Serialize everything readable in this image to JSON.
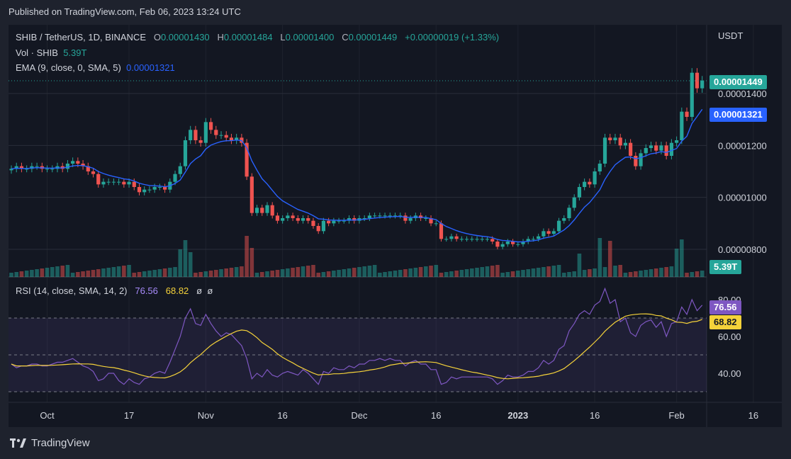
{
  "publish_line": "Published on TradingView.com, Feb 06, 2023 13:24 UTC",
  "footer_brand": "TradingView",
  "legend": {
    "symbol": "SHIB / TetherUS, 1D, BINANCE",
    "o_label": "O",
    "o": "0.00001430",
    "h_label": "H",
    "h": "0.00001484",
    "l_label": "L",
    "l": "0.00001400",
    "c_label": "C",
    "c": "0.00001449",
    "change": "+0.00000019 (+1.33%)",
    "vol_label": "Vol · SHIB",
    "vol": "5.39T",
    "ema_label": "EMA (9, close, 0, SMA, 5)",
    "ema": "0.00001321"
  },
  "rsi_legend": {
    "label": "RSI (14, close, SMA, 14, 2)",
    "rsi": "76.56",
    "ma": "68.82",
    "n1": "ø",
    "n2": "ø"
  },
  "price_axis": {
    "currency": "USDT",
    "ticks": [
      "0.00001400",
      "0.00001200",
      "0.00001000",
      "0.00000800"
    ],
    "tick_values": [
      1.4e-05,
      1.2e-05,
      1e-05,
      8e-06
    ]
  },
  "rsi_axis": {
    "ticks": [
      "80.00",
      "60.00",
      "40.00"
    ],
    "tick_values": [
      80,
      60,
      40
    ]
  },
  "tags": {
    "last": "0.00001449",
    "ema": "0.00001321",
    "vol": "5.39T",
    "rsi": "76.56",
    "rsi_ma": "68.82"
  },
  "time_axis": [
    "Oct",
    "17",
    "Nov",
    "16",
    "Dec",
    "16",
    "2023",
    "16",
    "Feb",
    "16"
  ],
  "colors": {
    "up": "#26a69a",
    "down": "#ef5350",
    "ema": "#2962ff",
    "rsi": "#7e57c2",
    "rsi_ma": "#f5d23a",
    "bg": "#131722",
    "grid": "#2a2e39"
  },
  "chart_data": {
    "type": "candlestick",
    "symbol": "SHIB / TetherUS",
    "interval": "1D",
    "start_date": "2022-09-24",
    "price_range": [
      7.4e-06,
      1.54e-05
    ],
    "candles_note": "daily OHLC estimated from chart",
    "close": [
      1.11e-05,
      1.12e-05,
      1.11e-05,
      1.11e-05,
      1.12e-05,
      1.12e-05,
      1.11e-05,
      1.11e-05,
      1.11e-05,
      1.12e-05,
      1.11e-05,
      1.13e-05,
      1.14e-05,
      1.13e-05,
      1.12e-05,
      1.1e-05,
      1.09e-05,
      1.05e-05,
      1.06e-05,
      1.06e-05,
      1.06e-05,
      1.06e-05,
      1.05e-05,
      1.06e-05,
      1.04e-05,
      1.02e-05,
      1.03e-05,
      1.03e-05,
      1.04e-05,
      1.04e-05,
      1.03e-05,
      1.06e-05,
      1.09e-05,
      1.12e-05,
      1.22e-05,
      1.26e-05,
      1.22e-05,
      1.21e-05,
      1.29e-05,
      1.26e-05,
      1.24e-05,
      1.24e-05,
      1.23e-05,
      1.22e-05,
      1.23e-05,
      1.21e-05,
      1.08e-05,
      9.4e-06,
      9.6e-06,
      9.4e-06,
      9.7e-06,
      9.3e-06,
      9.1e-06,
      9.2e-06,
      9.3e-06,
      9.2e-06,
      9.1e-06,
      9.2e-06,
      9.1e-06,
      8.9e-06,
      8.7e-06,
      9.1e-06,
      9e-06,
      9.1e-06,
      9.1e-06,
      9.1e-06,
      9.2e-06,
      9.1e-06,
      9.2e-06,
      9.2e-06,
      9.3e-06,
      9.3e-06,
      9.3e-06,
      9.3e-06,
      9.3e-06,
      9.3e-06,
      9.3e-06,
      9.1e-06,
      9.2e-06,
      9.3e-06,
      9.2e-06,
      9.2e-06,
      9e-06,
      9e-06,
      8.4e-06,
      8.4e-06,
      8.5e-06,
      8.4e-06,
      8.4e-06,
      8.4e-06,
      8.4e-06,
      8.4e-06,
      8.4e-06,
      8.4e-06,
      8.3e-06,
      8.1e-06,
      8.2e-06,
      8.3e-06,
      8.2e-06,
      8.2e-06,
      8.3e-06,
      8.4e-06,
      8.4e-06,
      8.5e-06,
      8.7e-06,
      8.6e-06,
      8.7e-06,
      9.1e-06,
      9.2e-06,
      9.6e-06,
      1e-05,
      1.04e-05,
      1.06e-05,
      1.05e-05,
      1.1e-05,
      1.13e-05,
      1.23e-05,
      1.22e-05,
      1.23e-05,
      1.2e-05,
      1.21e-05,
      1.16e-05,
      1.12e-05,
      1.17e-05,
      1.19e-05,
      1.2e-05,
      1.18e-05,
      1.2e-05,
      1.16e-05,
      1.21e-05,
      1.22e-05,
      1.33e-05,
      1.31e-05,
      1.48e-05,
      1.42e-05,
      1.45e-05
    ],
    "ema_last": 1.321e-05,
    "rsi": [
      45,
      43,
      44,
      44,
      45,
      45,
      44,
      44,
      45,
      46,
      46,
      47,
      48,
      46,
      44,
      43,
      41,
      36,
      37,
      40,
      40,
      36,
      34,
      37,
      35,
      34,
      37,
      38,
      40,
      41,
      40,
      46,
      53,
      60,
      70,
      75,
      67,
      66,
      72,
      67,
      63,
      60,
      62,
      61,
      58,
      55,
      48,
      37,
      40,
      38,
      42,
      39,
      38,
      40,
      41,
      40,
      39,
      42,
      40,
      37,
      34,
      41,
      40,
      43,
      42,
      42,
      44,
      43,
      45,
      45,
      47,
      47,
      48,
      47,
      48,
      47,
      47,
      44,
      46,
      47,
      45,
      45,
      42,
      42,
      34,
      35,
      38,
      37,
      38,
      38,
      38,
      38,
      38,
      38,
      37,
      34,
      36,
      39,
      38,
      38,
      39,
      41,
      41,
      43,
      47,
      45,
      47,
      53,
      55,
      63,
      67,
      72,
      74,
      72,
      77,
      79,
      86,
      78,
      80,
      68,
      70,
      62,
      60,
      66,
      68,
      69,
      65,
      68,
      60,
      67,
      68,
      76,
      72,
      80,
      74,
      77
    ],
    "rsi_ma_last": 68.82,
    "rsi_range": [
      20,
      90
    ],
    "rsi_levels": [
      70,
      50,
      30
    ],
    "last_close": 1.449e-05,
    "volume_last": "5.39T"
  }
}
